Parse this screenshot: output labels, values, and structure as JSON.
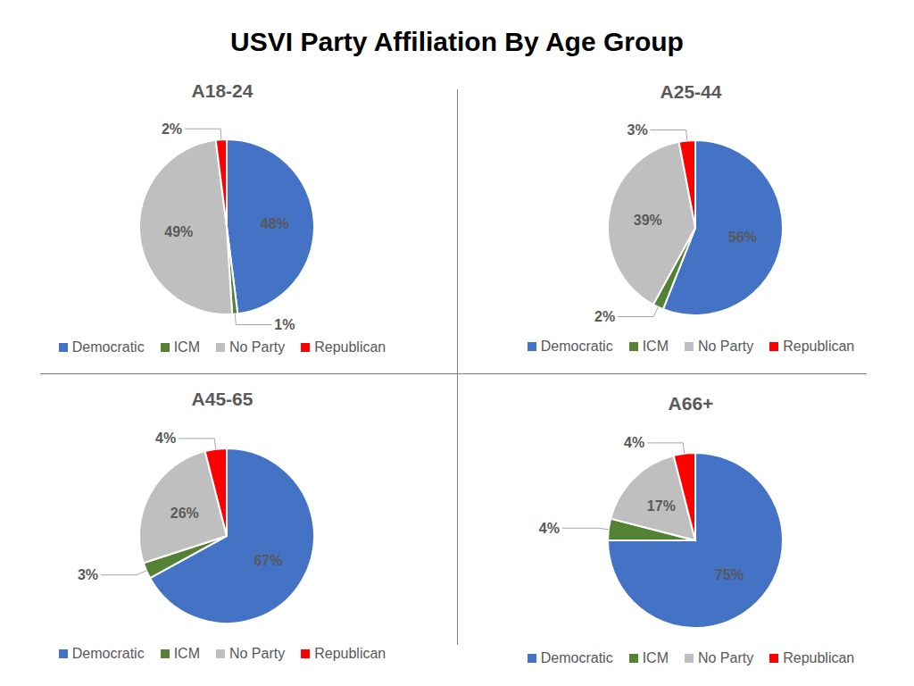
{
  "title": "USVI Party Affiliation By Age Group",
  "chart_data": [
    {
      "type": "pie",
      "title": "A18-24",
      "categories": [
        "Democratic",
        "ICM",
        "No Party",
        "Republican"
      ],
      "values": [
        48,
        1,
        49,
        2
      ],
      "value_labels": [
        "48%",
        "1%",
        "49%",
        "2%"
      ],
      "colors": [
        "#4472c4",
        "#548235",
        "#bfbfbf",
        "#ff0000"
      ],
      "data_labels": true,
      "legend": "bottom"
    },
    {
      "type": "pie",
      "title": "A25-44",
      "categories": [
        "Democratic",
        "ICM",
        "No Party",
        "Republican"
      ],
      "values": [
        56,
        2,
        39,
        3
      ],
      "value_labels": [
        "56%",
        "2%",
        "39%",
        "3%"
      ],
      "colors": [
        "#4472c4",
        "#548235",
        "#bfbfbf",
        "#ff0000"
      ],
      "data_labels": true,
      "legend": "bottom"
    },
    {
      "type": "pie",
      "title": "A45-65",
      "categories": [
        "Democratic",
        "ICM",
        "No Party",
        "Republican"
      ],
      "values": [
        67,
        3,
        26,
        4
      ],
      "value_labels": [
        "67%",
        "3%",
        "26%",
        "4%"
      ],
      "colors": [
        "#4472c4",
        "#548235",
        "#bfbfbf",
        "#ff0000"
      ],
      "data_labels": true,
      "legend": "bottom"
    },
    {
      "type": "pie",
      "title": "A66+",
      "categories": [
        "Democratic",
        "ICM",
        "No Party",
        "Republican"
      ],
      "values": [
        75,
        4,
        17,
        4
      ],
      "value_labels": [
        "75%",
        "4%",
        "17%",
        "4%"
      ],
      "colors": [
        "#4472c4",
        "#548235",
        "#bfbfbf",
        "#ff0000"
      ],
      "data_labels": true,
      "legend": "bottom"
    }
  ]
}
